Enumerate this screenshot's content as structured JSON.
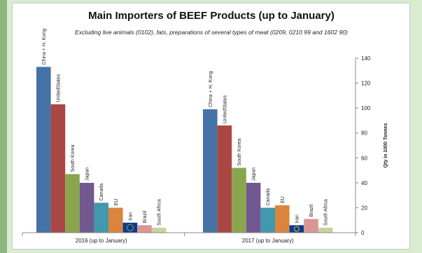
{
  "chart_data": {
    "type": "bar",
    "title": "Main Importers of BEEF Products (up to January)",
    "subtitle": "Excluding live animals (0102), fats, preparations of several types of meat (0209, 0210 99 and 1602 90)",
    "ylabel": "Qty in 1000 Tonnes",
    "ylim": [
      0,
      140
    ],
    "yticks": [
      0,
      20,
      40,
      60,
      80,
      100,
      120,
      140
    ],
    "y_axis_side": "right",
    "categories": [
      "2016 (up to January)",
      "2017 (up to January)"
    ],
    "series": [
      {
        "name": "China + H. Kong",
        "color": "#4572a7",
        "values": [
          133,
          99
        ]
      },
      {
        "name": "UnitedStates",
        "color": "#aa4643",
        "values": [
          103,
          86
        ]
      },
      {
        "name": "South Korea",
        "color": "#89a54e",
        "values": [
          47,
          52
        ]
      },
      {
        "name": "Japan",
        "color": "#71588f",
        "values": [
          40,
          40
        ]
      },
      {
        "name": "Canada",
        "color": "#4198af",
        "values": [
          24,
          20
        ]
      },
      {
        "name": "EU",
        "color": "#db843d",
        "values": [
          20,
          22
        ]
      },
      {
        "name": "Iran",
        "color": "#0a3a8f",
        "values": [
          8,
          6
        ],
        "eu_flag": true
      },
      {
        "name": "Brazil",
        "color": "#d99694",
        "values": [
          6,
          11
        ]
      },
      {
        "name": "South Africa",
        "color": "#c3d69b",
        "values": [
          4,
          4
        ]
      }
    ]
  }
}
